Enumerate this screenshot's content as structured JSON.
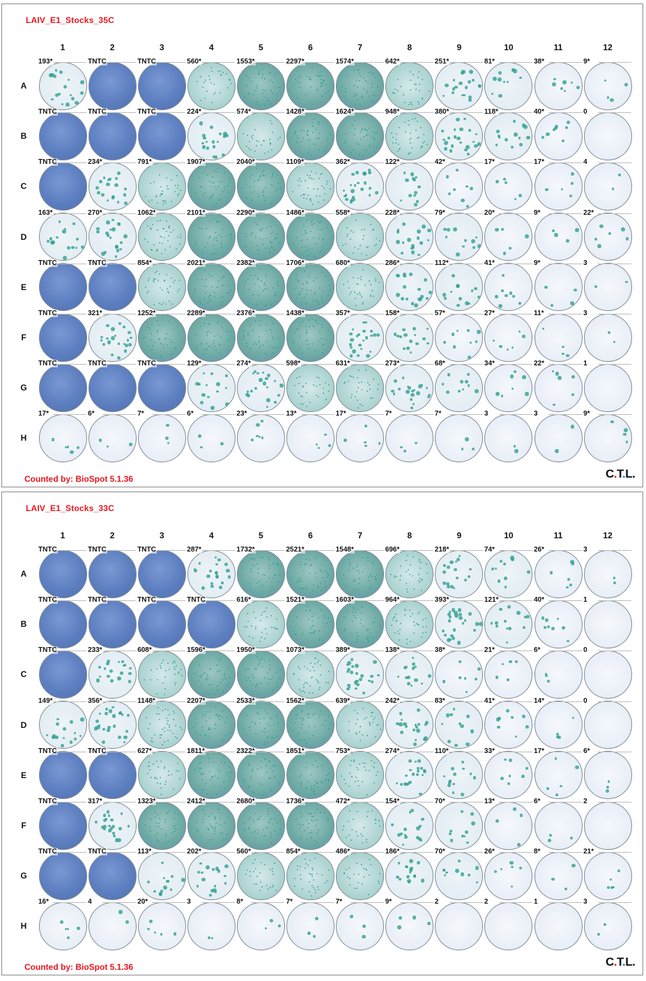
{
  "columns": [
    "1",
    "2",
    "3",
    "4",
    "5",
    "6",
    "7",
    "8",
    "9",
    "10",
    "11",
    "12"
  ],
  "rows": [
    "A",
    "B",
    "C",
    "D",
    "E",
    "F",
    "G",
    "H"
  ],
  "logo": {
    "c": "C",
    "t": "T",
    "l": "L",
    "dot": "."
  },
  "colors": {
    "label_red": "#e8141b",
    "spot_teal": "#2fa08e",
    "dense_blue": "#5d7fc0",
    "empty_well": "#e7edf6"
  },
  "plates": [
    {
      "title": "LAIV_E1_Stocks_35C",
      "footer": "Counted by: BioSpot 5.1.36",
      "counts": [
        [
          "193*",
          "TNTC",
          "TNTC",
          "560*",
          "1553*",
          "2297*",
          "1574*",
          "642*",
          "251*",
          "81*",
          "38*",
          "9*"
        ],
        [
          "TNTC",
          "TNTC",
          "TNTC",
          "224*",
          "574*",
          "1428*",
          "1624*",
          "948*",
          "380*",
          "118*",
          "40*",
          "0"
        ],
        [
          "TNTC",
          "234*",
          "791*",
          "1907*",
          "2040*",
          "1109*",
          "362*",
          "122*",
          "42*",
          "17*",
          "17*",
          "4"
        ],
        [
          "163*",
          "270*",
          "1062*",
          "2101*",
          "2290*",
          "1486*",
          "558*",
          "228*",
          "79*",
          "20*",
          "9*",
          "22*"
        ],
        [
          "TNTC",
          "TNTC",
          "854*",
          "2021*",
          "2382*",
          "1706*",
          "680*",
          "286*",
          "112*",
          "41*",
          "9*",
          "3"
        ],
        [
          "TNTC",
          "321*",
          "1252*",
          "2289*",
          "2376*",
          "1438*",
          "357*",
          "158*",
          "57*",
          "27*",
          "11*",
          "3"
        ],
        [
          "TNTC",
          "TNTC",
          "TNTC",
          "129*",
          "274*",
          "598*",
          "631*",
          "273*",
          "68*",
          "34*",
          "22*",
          "1"
        ],
        [
          "17*",
          "6*",
          "7*",
          "6*",
          "23*",
          "13*",
          "17*",
          "7*",
          "7*",
          "3",
          "3",
          "9*"
        ]
      ]
    },
    {
      "title": "LAIV_E1_Stocks_33C",
      "footer": "Counted by: BioSpot 5.1.36",
      "counts": [
        [
          "TNTC",
          "TNTC",
          "TNTC",
          "287*",
          "1732*",
          "2521*",
          "1548*",
          "696*",
          "218*",
          "74*",
          "26*",
          "3"
        ],
        [
          "TNTC",
          "TNTC",
          "TNTC",
          "TNTC",
          "616*",
          "1521*",
          "1603*",
          "964*",
          "393*",
          "121*",
          "40*",
          "1"
        ],
        [
          "TNTC",
          "233*",
          "608*",
          "1596*",
          "1950*",
          "1073*",
          "389*",
          "138*",
          "38*",
          "21*",
          "6*",
          "0"
        ],
        [
          "149*",
          "356*",
          "1148*",
          "2207*",
          "2533*",
          "1562*",
          "639*",
          "242*",
          "83*",
          "41*",
          "14*",
          "0"
        ],
        [
          "TNTC",
          "TNTC",
          "627*",
          "1811*",
          "2322*",
          "1851*",
          "753*",
          "274*",
          "110*",
          "33*",
          "17*",
          "6*"
        ],
        [
          "TNTC",
          "317*",
          "1323*",
          "2412*",
          "2680*",
          "1736*",
          "472*",
          "154*",
          "70*",
          "13*",
          "6*",
          "2"
        ],
        [
          "TNTC",
          "TNTC",
          "113*",
          "202*",
          "560*",
          "854*",
          "486*",
          "186*",
          "70*",
          "26*",
          "8*",
          "21*"
        ],
        [
          "16*",
          "4",
          "20*",
          "3",
          "8*",
          "7*",
          "7*",
          "9*",
          "2",
          "2",
          "1",
          "3"
        ]
      ]
    }
  ]
}
